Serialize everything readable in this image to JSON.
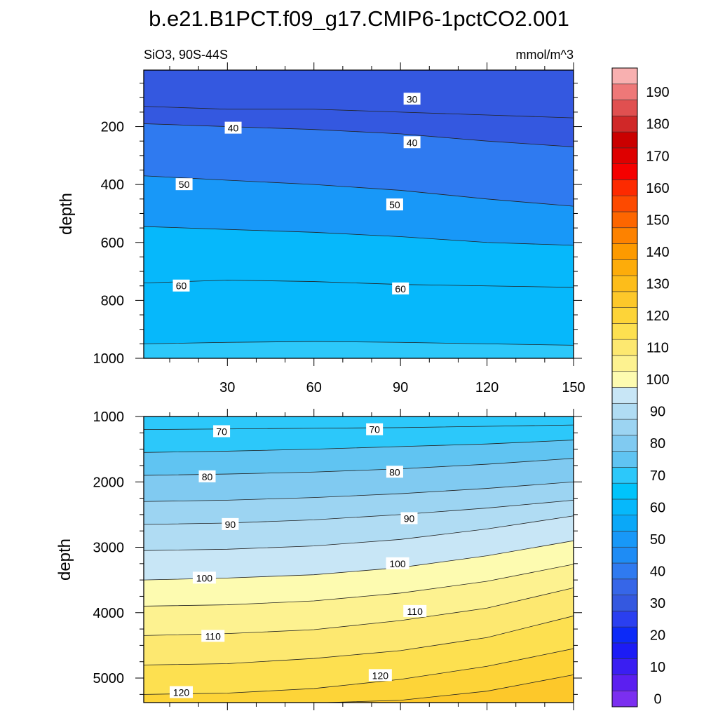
{
  "figure": {
    "title": "b.e21.B1PCT.f09_g17.CMIP6-1pctCO2.001",
    "left_subtitle": "SiO3, 90S-44S",
    "right_subtitle": "mmol/m^3"
  },
  "chart_data": [
    {
      "type": "heatmap",
      "subtype": "filled-contour",
      "panel": "upper",
      "xlabel": "",
      "ylabel": "depth",
      "xlim": [
        1,
        150
      ],
      "ylim": [
        1000,
        5
      ],
      "xticks": [
        30,
        60,
        90,
        120,
        150
      ],
      "yticks": [
        200,
        400,
        600,
        800,
        1000
      ],
      "contour_lines": [
        {
          "level": 30,
          "x": [
            1,
            30,
            60,
            90,
            120,
            150
          ],
          "depth": [
            130,
            140,
            140,
            150,
            160,
            170
          ]
        },
        {
          "level": 40,
          "x": [
            1,
            30,
            60,
            90,
            120,
            150
          ],
          "depth": [
            190,
            200,
            210,
            225,
            250,
            270
          ]
        },
        {
          "level": 50,
          "x": [
            1,
            30,
            60,
            90,
            120,
            150
          ],
          "depth": [
            370,
            385,
            400,
            420,
            450,
            475
          ]
        },
        {
          "level": 60,
          "x": [
            1,
            30,
            60,
            90,
            120,
            150
          ],
          "depth": [
            545,
            555,
            565,
            580,
            600,
            610
          ]
        },
        {
          "level": 60,
          "x": [
            1,
            30,
            60,
            90,
            120,
            150
          ],
          "depth": [
            740,
            730,
            735,
            745,
            750,
            755
          ]
        },
        {
          "level": 70,
          "x": [
            1,
            30,
            60,
            90,
            120,
            150
          ],
          "depth": [
            950,
            945,
            942,
            945,
            950,
            955
          ]
        }
      ],
      "contour_labels": [
        {
          "text": "30",
          "x": 94,
          "depth": 105
        },
        {
          "text": "40",
          "x": 32,
          "depth": 205
        },
        {
          "text": "40",
          "x": 94,
          "depth": 255
        },
        {
          "text": "50",
          "x": 15,
          "depth": 400
        },
        {
          "text": "50",
          "x": 88,
          "depth": 470
        },
        {
          "text": "60",
          "x": 14,
          "depth": 750
        },
        {
          "text": "60",
          "x": 90,
          "depth": 760
        }
      ]
    },
    {
      "type": "heatmap",
      "subtype": "filled-contour",
      "panel": "lower",
      "xlabel": "",
      "ylabel": "depth",
      "xlim": [
        1,
        150
      ],
      "ylim": [
        5375,
        1000
      ],
      "xticks": [
        30,
        60,
        90,
        120,
        150
      ],
      "yticks": [
        1000,
        2000,
        3000,
        4000,
        5000
      ],
      "contour_lines": [
        {
          "level": 70,
          "x": [
            1,
            30,
            60,
            90,
            120,
            150
          ],
          "depth": [
            1200,
            1190,
            1180,
            1170,
            1150,
            1130
          ]
        },
        {
          "level": 75,
          "x": [
            1,
            30,
            60,
            90,
            120,
            150
          ],
          "depth": [
            1550,
            1530,
            1500,
            1460,
            1420,
            1360
          ]
        },
        {
          "level": 80,
          "x": [
            1,
            30,
            60,
            90,
            120,
            150
          ],
          "depth": [
            1900,
            1880,
            1850,
            1800,
            1730,
            1640
          ]
        },
        {
          "level": 85,
          "x": [
            1,
            30,
            60,
            90,
            120,
            150
          ],
          "depth": [
            2300,
            2280,
            2240,
            2180,
            2100,
            2000
          ]
        },
        {
          "level": 90,
          "x": [
            1,
            30,
            60,
            90,
            120,
            150
          ],
          "depth": [
            2650,
            2630,
            2580,
            2500,
            2400,
            2280
          ]
        },
        {
          "level": 95,
          "x": [
            1,
            30,
            60,
            90,
            120,
            150
          ],
          "depth": [
            3050,
            3030,
            2980,
            2880,
            2720,
            2520
          ]
        },
        {
          "level": 100,
          "x": [
            1,
            30,
            60,
            90,
            120,
            150
          ],
          "depth": [
            3500,
            3470,
            3420,
            3310,
            3130,
            2900
          ]
        },
        {
          "level": 105,
          "x": [
            1,
            30,
            60,
            90,
            120,
            150
          ],
          "depth": [
            3900,
            3880,
            3820,
            3700,
            3520,
            3260
          ]
        },
        {
          "level": 110,
          "x": [
            1,
            30,
            60,
            90,
            120,
            150
          ],
          "depth": [
            4350,
            4320,
            4260,
            4120,
            3930,
            3620
          ]
        },
        {
          "level": 115,
          "x": [
            1,
            30,
            60,
            90,
            120,
            150
          ],
          "depth": [
            4800,
            4780,
            4700,
            4580,
            4380,
            4050
          ]
        },
        {
          "level": 120,
          "x": [
            1,
            30,
            60,
            90,
            120,
            150
          ],
          "depth": [
            5250,
            5230,
            5160,
            5020,
            4820,
            4550
          ]
        },
        {
          "level": 125,
          "x": [
            1,
            30,
            60,
            90,
            120,
            150
          ],
          "depth": [
            5400,
            5400,
            5380,
            5340,
            5200,
            4950
          ]
        }
      ],
      "contour_labels": [
        {
          "text": "70",
          "x": 28,
          "depth": 1230
        },
        {
          "text": "70",
          "x": 81,
          "depth": 1200
        },
        {
          "text": "80",
          "x": 23,
          "depth": 1920
        },
        {
          "text": "80",
          "x": 88,
          "depth": 1850
        },
        {
          "text": "90",
          "x": 31,
          "depth": 2650
        },
        {
          "text": "90",
          "x": 93,
          "depth": 2560
        },
        {
          "text": "100",
          "x": 22,
          "depth": 3470
        },
        {
          "text": "100",
          "x": 89,
          "depth": 3250
        },
        {
          "text": "110",
          "x": 25,
          "depth": 4360
        },
        {
          "text": "110",
          "x": 95,
          "depth": 3980
        },
        {
          "text": "120",
          "x": 14,
          "depth": 5220
        },
        {
          "text": "120",
          "x": 83,
          "depth": 4960
        }
      ]
    }
  ],
  "colorbar": {
    "levels": [
      0,
      5,
      10,
      15,
      20,
      25,
      30,
      35,
      40,
      45,
      50,
      55,
      60,
      65,
      70,
      75,
      80,
      85,
      90,
      95,
      100,
      105,
      110,
      115,
      120,
      125,
      130,
      135,
      140,
      145,
      150,
      155,
      160,
      165,
      170,
      175,
      180,
      185,
      190,
      195
    ],
    "labels": [
      "0",
      "10",
      "20",
      "30",
      "40",
      "50",
      "60",
      "70",
      "80",
      "90",
      "100",
      "110",
      "120",
      "130",
      "140",
      "150",
      "160",
      "170",
      "180",
      "190"
    ],
    "colors": [
      "#7b2ff0",
      "#5b1ff0",
      "#3a1ef2",
      "#1c1cf5",
      "#0c2af8",
      "#2a3ff0",
      "#3458e0",
      "#3666e8",
      "#2f7af0",
      "#1e8cf5",
      "#1898f8",
      "#0aa8f8",
      "#06b8fb",
      "#00c4fb",
      "#2cc8fa",
      "#60c4f2",
      "#80caf1",
      "#9cd4f2",
      "#b0dcf3",
      "#c8e6f6",
      "#fdfbb0",
      "#fdf290",
      "#fde870",
      "#fde050",
      "#fdd438",
      "#fdc82a",
      "#fdbd1a",
      "#fdac0a",
      "#fd9a00",
      "#fd8200",
      "#fd6600",
      "#fd4a00",
      "#fd2a00",
      "#f50000",
      "#de0000",
      "#ca0000",
      "#d02828",
      "#e05050",
      "#ee7878",
      "#f8b0b0"
    ]
  }
}
